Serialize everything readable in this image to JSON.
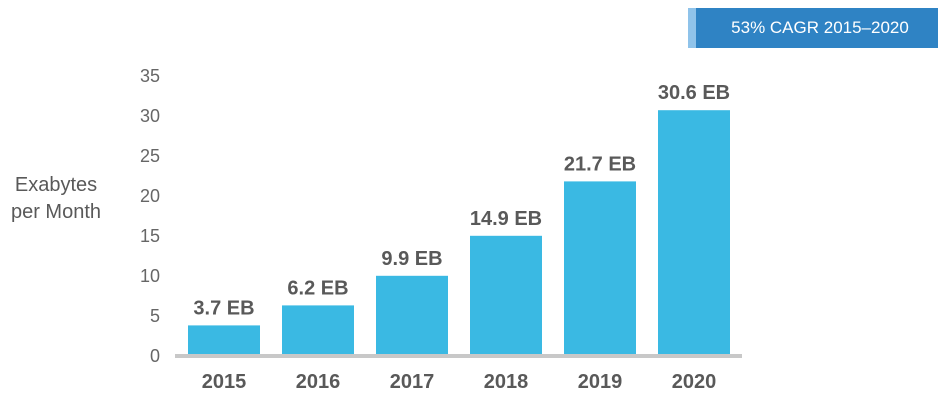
{
  "badge": {
    "text": "53% CAGR 2015–2020",
    "color": "#2f83c4"
  },
  "chart_data": {
    "type": "bar",
    "title": "",
    "xlabel": "",
    "ylabel_lines": [
      "Exabytes",
      "per Month"
    ],
    "categories": [
      "2015",
      "2016",
      "2017",
      "2018",
      "2019",
      "2020"
    ],
    "values": [
      3.7,
      6.2,
      9.9,
      14.9,
      21.7,
      30.6
    ],
    "data_labels": [
      "3.7 EB",
      "6.2 EB",
      "9.9 EB",
      "14.9 EB",
      "21.7 EB",
      "30.6 EB"
    ],
    "ylim": [
      0,
      35
    ],
    "yticks": [
      0,
      5,
      10,
      15,
      20,
      25,
      30,
      35
    ],
    "grid": false,
    "bar_color": "#3ab9e3",
    "axis_color": "#c8c8c8",
    "label_color": "#595959",
    "tick_color": "#666666"
  }
}
